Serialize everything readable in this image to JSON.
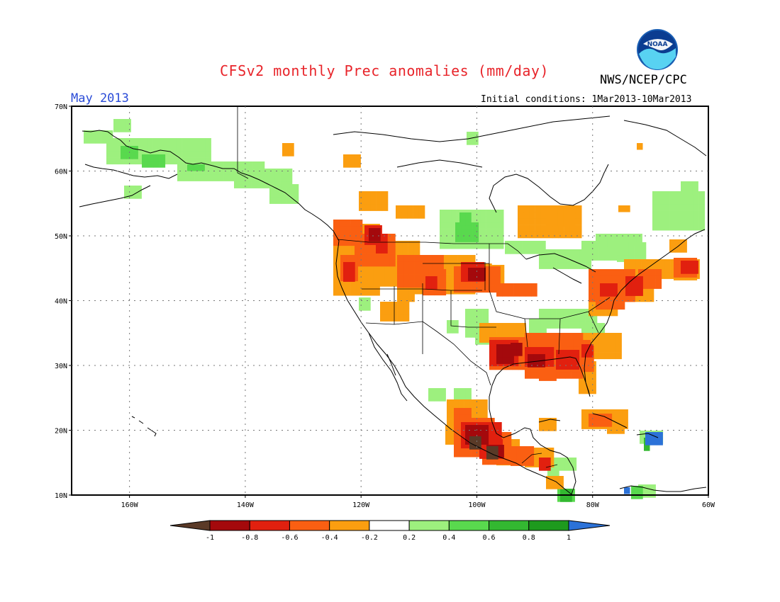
{
  "header": {
    "title": "CFSv2 monthly Prec anomalies (mm/day)",
    "agency": "NWS/NCEP/CPC",
    "logo_text": "NOAA",
    "month": "May 2013",
    "initial_conditions": "Initial conditions: 1Mar2013-10Mar2013"
  },
  "map": {
    "lat_labels": [
      "70N",
      "60N",
      "50N",
      "40N",
      "30N",
      "20N",
      "10N"
    ],
    "lon_labels": [
      "160W",
      "140W",
      "120W",
      "100W",
      "80W",
      "60W"
    ],
    "lon_range": [
      -170,
      -60
    ],
    "lat_range": [
      10,
      70
    ],
    "grid": "dotted"
  },
  "colorbar": {
    "ticks": [
      "-1",
      "-0.8",
      "-0.6",
      "-0.4",
      "-0.2",
      "0.2",
      "0.4",
      "0.6",
      "0.8",
      "1"
    ],
    "colors": [
      "#5a3a27",
      "#a4090c",
      "#e1200f",
      "#fa5f12",
      "#fb9e10",
      "#ffffff",
      "#9df07e",
      "#59d94e",
      "#33b831",
      "#1e9a1e",
      "#2c72d8"
    ]
  }
}
